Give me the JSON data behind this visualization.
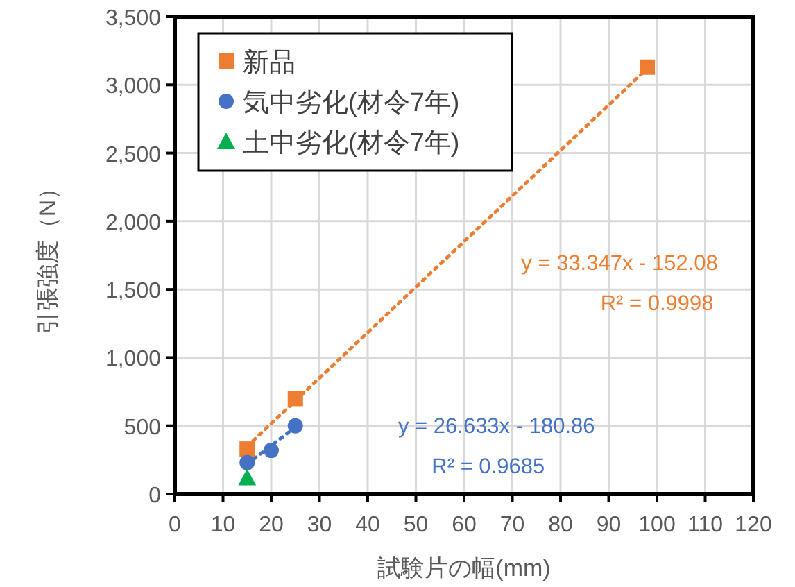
{
  "chart_data": {
    "type": "scatter",
    "xlabel": "試験片の幅(mm)",
    "ylabel": "引張強度（N）",
    "xlim": [
      0,
      120
    ],
    "xticks": [
      0,
      10,
      20,
      30,
      40,
      50,
      60,
      70,
      80,
      90,
      100,
      110,
      120
    ],
    "ylim": [
      0,
      3500
    ],
    "yticks": [
      0,
      500,
      {
        "value": 1000,
        "label": "1,000"
      },
      {
        "value": 1500,
        "label": "1,500"
      },
      {
        "value": 2000,
        "label": "2,000"
      },
      {
        "value": 2500,
        "label": "2,500"
      },
      {
        "value": 3000,
        "label": "3,000"
      },
      {
        "value": 3500,
        "label": "3,500"
      }
    ],
    "grid": true,
    "legend": "top left",
    "series": [
      {
        "type": "line",
        "color": "#ed7d31",
        "x": [
          15,
          98
        ],
        "values": [
          350,
          3120
        ],
        "line_style": "dotted",
        "marker": "none"
      },
      {
        "type": "line",
        "color": "#4472c4",
        "x": [
          15,
          25
        ],
        "values": [
          220,
          490
        ],
        "line_style": "dotted",
        "marker": "none"
      },
      {
        "name": "新品",
        "color": "#ed7d31",
        "marker": "square",
        "x": [
          15,
          25,
          98
        ],
        "values": [
          330,
          700,
          3130
        ]
      },
      {
        "name": "気中劣化(材令7年)",
        "color": "#4472c4",
        "marker": "circle",
        "x": [
          15,
          20,
          25
        ],
        "values": [
          230,
          320,
          500
        ]
      },
      {
        "name": "土中劣化(材令7年)",
        "color": "#00b050",
        "marker": "triangle",
        "x": [
          15
        ],
        "values": [
          120
        ]
      }
    ],
    "annotations": [
      "y = 33.347x - 152.08",
      "R² = 0.9998",
      "y = 26.633x - 180.86",
      "R² = 0.9685"
    ]
  }
}
